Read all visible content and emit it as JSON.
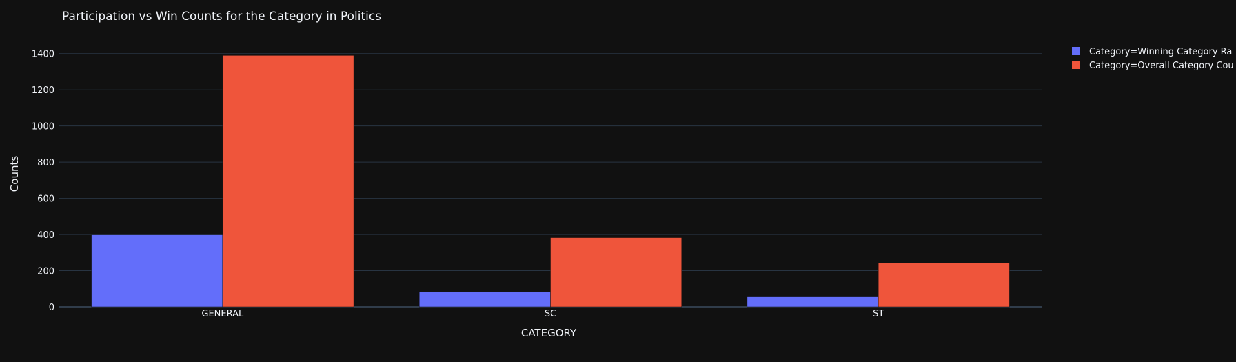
{
  "chart_data": {
    "type": "bar",
    "barmode": "group",
    "title": "Participation vs Win Counts for the Category in Politics",
    "xlabel": "CATEGORY",
    "ylabel": "Counts",
    "categories": [
      "GENERAL",
      "SC",
      "ST"
    ],
    "series": [
      {
        "name": "Category=Winning Category Ra",
        "color": "#636efa",
        "values": [
          398,
          84,
          55
        ]
      },
      {
        "name": "Category=Overall Category Cou",
        "color": "#ef553b",
        "values": [
          1390,
          383,
          243
        ]
      }
    ],
    "ylim": [
      0,
      1460
    ],
    "yticks": [
      0,
      200,
      400,
      600,
      800,
      1000,
      1200,
      1400
    ],
    "grid": true,
    "legend_position": "top-right",
    "background": "#111111",
    "grid_color": "#283442"
  }
}
